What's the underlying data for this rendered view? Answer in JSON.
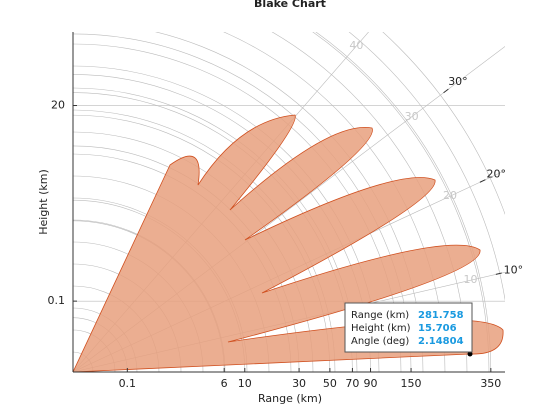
{
  "chart_data": {
    "type": "blake",
    "title": "Blake Chart",
    "x_label": "Range (km)",
    "y_label": "Height (km)",
    "xlim": [
      0,
      400
    ],
    "ylim": [
      0,
      53
    ],
    "xticks": [
      0.1,
      6,
      10,
      30,
      50,
      70,
      90,
      150,
      350
    ],
    "yticks": [
      0.1,
      20
    ],
    "angle_ticks": [
      {
        "value": 10,
        "label": "10°"
      },
      {
        "value": 20,
        "label": "20°"
      },
      {
        "value": 30,
        "label": "30°"
      }
    ],
    "angle_grid": [
      10,
      20,
      30,
      40
    ],
    "lobe_color": "#e8a07e",
    "datatip": [
      {
        "label": "Range (km)",
        "value": 281.758
      },
      {
        "label": "Height (km)",
        "value": 15.706
      },
      {
        "label": "Angle (deg)",
        "value": 2.14804
      }
    ]
  }
}
